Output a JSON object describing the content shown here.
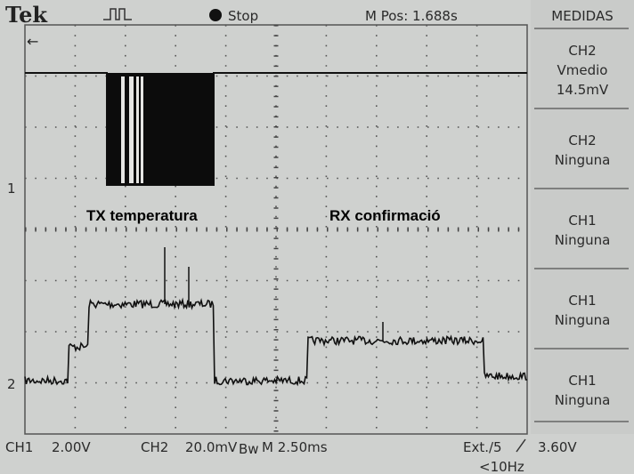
{
  "header": {
    "brand": "Tek",
    "status": "Stop",
    "position": "M Pos: 1.688s"
  },
  "menu": {
    "title": "MEDIDAS",
    "items": [
      {
        "channel": "CH2",
        "label": "Vmedio",
        "value": "14.5mV"
      },
      {
        "channel": "CH2",
        "label": "Ninguna"
      },
      {
        "channel": "CH1",
        "label": "Ninguna"
      },
      {
        "channel": "CH1",
        "label": "Ninguna"
      },
      {
        "channel": "CH1",
        "label": "Ninguna"
      }
    ]
  },
  "annotations": [
    "TX temperatura",
    "RX confirmació"
  ],
  "markers": [
    "1",
    "2"
  ],
  "footer": {
    "ch1": "CH1",
    "ch1_scale": "2.00V",
    "ch2": "CH2",
    "ch2_scale": "20.0mV",
    "bw": "Bw",
    "timebase": "M 2.50ms",
    "trigger_source": "Ext./5",
    "trigger_level": "3.60V",
    "frequency": "<10Hz"
  }
}
